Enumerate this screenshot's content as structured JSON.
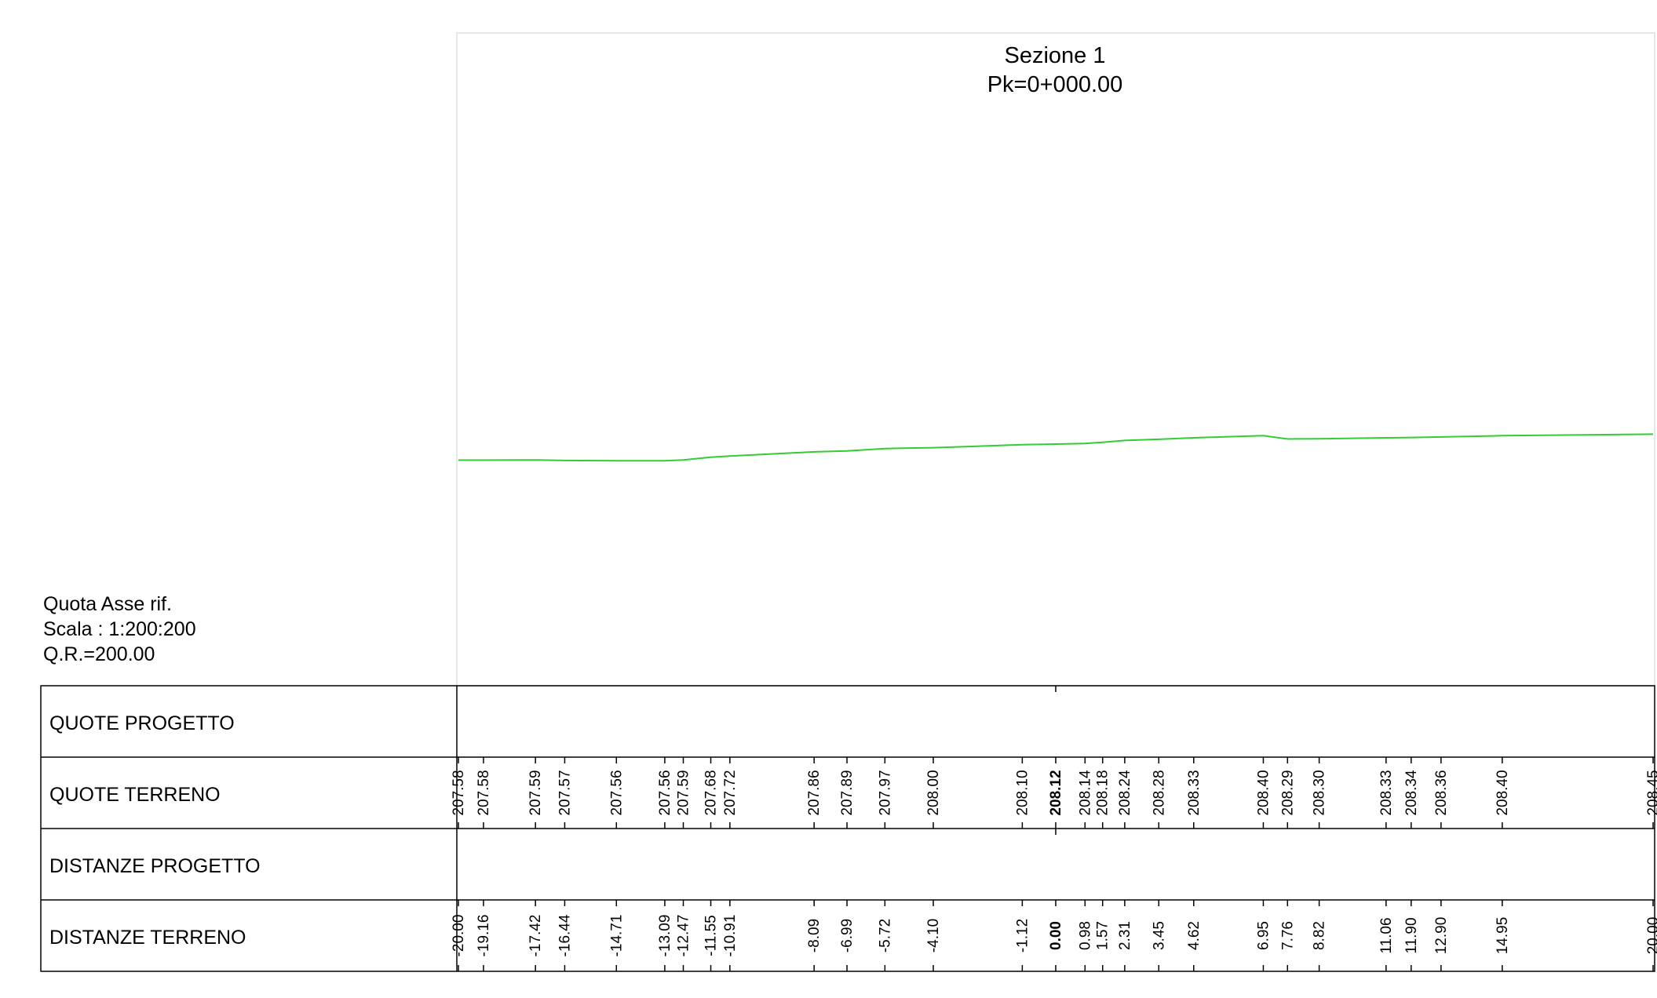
{
  "title": {
    "section": "Sezione 1",
    "pk": "Pk=0+000.00"
  },
  "info": {
    "quota": "Quota Asse rif.",
    "scala": "Scala : 1:200:200",
    "qr": "Q.R.=200.00"
  },
  "rows": {
    "quote_progetto": "QUOTE PROGETTO",
    "quote_terreno": "QUOTE TERRENO",
    "distanze_progetto": "DISTANZE PROGETTO",
    "distanze_terreno": "DISTANZE TERRENO"
  },
  "colors": {
    "terrain": "#33cc33",
    "frame": "#000000",
    "viewport": "#e6e6e6"
  },
  "chart_data": {
    "type": "line",
    "title": "Sezione 1",
    "subtitle": "Pk=0+000.00",
    "xlim": [
      -20,
      20
    ],
    "reference_level": 200.0,
    "scale": "1:200:200",
    "series": [
      {
        "name": "",
        "x": [
          -20.0,
          -19.16,
          -17.42,
          -16.44,
          -14.71,
          -13.09,
          -12.47,
          -11.55,
          -10.91,
          -8.09,
          -6.99,
          -5.72,
          -4.1,
          -1.12,
          0.0,
          0.98,
          1.57,
          2.31,
          3.45,
          4.62,
          6.95,
          7.76,
          8.82,
          11.06,
          11.9,
          12.9,
          14.95,
          20.0
        ],
        "elevation": [
          207.58,
          207.58,
          207.59,
          207.57,
          207.56,
          207.56,
          207.59,
          207.68,
          207.72,
          207.86,
          207.89,
          207.97,
          208.0,
          208.1,
          208.12,
          208.14,
          208.18,
          208.24,
          208.28,
          208.33,
          208.4,
          208.29,
          208.3,
          208.33,
          208.34,
          208.36,
          208.4,
          208.45
        ],
        "quote_labels": [
          "207.58",
          "207.58",
          "207.59",
          "207.57",
          "207.56",
          "207.56",
          "207.59",
          "207.68",
          "207.72",
          "207.86",
          "207.89",
          "207.97",
          "208.00",
          "208.10",
          "208.12",
          "208.14",
          "208.18",
          "208.24",
          "208.28",
          "208.33",
          "208.40",
          "208.29",
          "208.30",
          "208.33",
          "208.34",
          "208.36",
          "208.40",
          "208.45"
        ],
        "distance_labels": [
          "-20.00",
          "-19.16",
          "-17.42",
          "-16.44",
          "-14.71",
          "-13.09",
          "-12.47",
          "-11.55",
          "-10.91",
          "-8.09",
          "-6.99",
          "-5.72",
          "-4.10",
          "-1.12",
          "0.00",
          "0.98",
          "1.57",
          "2.31",
          "3.45",
          "4.62",
          "6.95",
          "7.76",
          "8.82",
          "11.06",
          "11.90",
          "12.90",
          "14.95",
          "20.00"
        ]
      }
    ]
  }
}
